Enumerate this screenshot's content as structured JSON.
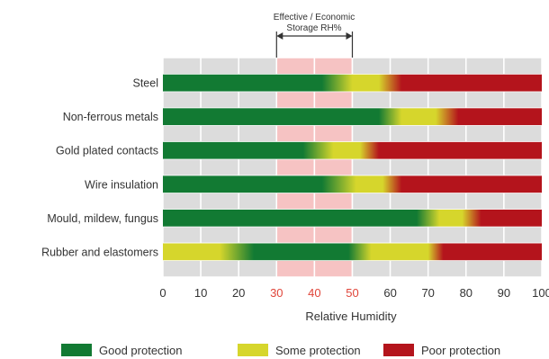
{
  "chart_data": {
    "type": "bar",
    "subtype": "humidity-gradient-bands",
    "annotation": {
      "line1": "Effective / Economic",
      "line2": "Storage RH%",
      "range": [
        30,
        50
      ]
    },
    "xlabel": "Relative Humidity",
    "xlim": [
      0,
      100
    ],
    "x_ticks": [
      "0",
      "10",
      "20",
      "30",
      "40",
      "50",
      "60",
      "70",
      "80",
      "90",
      "100"
    ],
    "highlight_ticks": [
      "30",
      "40",
      "50"
    ],
    "grid": true,
    "legend_position": "bottom",
    "legend": [
      {
        "label": "Good protection",
        "color": "#127a33"
      },
      {
        "label": "Some protection",
        "color": "#d6d62c"
      },
      {
        "label": "Poor protection",
        "color": "#b4141c"
      }
    ],
    "series": [
      {
        "name": "Steel",
        "stops": [
          [
            0,
            "good"
          ],
          [
            42,
            "good"
          ],
          [
            50,
            "some"
          ],
          [
            57,
            "some"
          ],
          [
            63,
            "poor"
          ],
          [
            100,
            "poor"
          ]
        ]
      },
      {
        "name": "Non-ferrous metals",
        "stops": [
          [
            0,
            "good"
          ],
          [
            57,
            "good"
          ],
          [
            63,
            "some"
          ],
          [
            72,
            "some"
          ],
          [
            78,
            "poor"
          ],
          [
            100,
            "poor"
          ]
        ]
      },
      {
        "name": "Gold plated contacts",
        "stops": [
          [
            0,
            "good"
          ],
          [
            37,
            "good"
          ],
          [
            45,
            "some"
          ],
          [
            52,
            "some"
          ],
          [
            57,
            "poor"
          ],
          [
            100,
            "poor"
          ]
        ]
      },
      {
        "name": "Wire insulation",
        "stops": [
          [
            0,
            "good"
          ],
          [
            42,
            "good"
          ],
          [
            51,
            "some"
          ],
          [
            58,
            "some"
          ],
          [
            63,
            "poor"
          ],
          [
            100,
            "poor"
          ]
        ]
      },
      {
        "name": "Mould, mildew, fungus",
        "stops": [
          [
            0,
            "good"
          ],
          [
            67,
            "good"
          ],
          [
            73,
            "some"
          ],
          [
            79,
            "some"
          ],
          [
            84,
            "poor"
          ],
          [
            100,
            "poor"
          ]
        ]
      },
      {
        "name": "Rubber and elastomers",
        "stops": [
          [
            0,
            "some"
          ],
          [
            15,
            "some"
          ],
          [
            24,
            "good"
          ],
          [
            49,
            "good"
          ],
          [
            55,
            "some"
          ],
          [
            70,
            "some"
          ],
          [
            74,
            "poor"
          ],
          [
            100,
            "poor"
          ]
        ]
      }
    ]
  }
}
